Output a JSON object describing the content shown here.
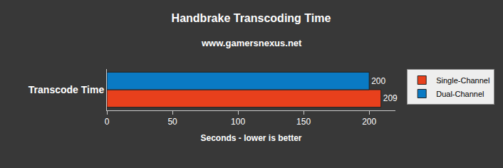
{
  "chart_data": {
    "type": "bar",
    "orientation": "horizontal",
    "title": "Handbrake Transcoding Time",
    "subtitle": "www.gamersnexus.net",
    "x_label": "Seconds - lower is better",
    "categories": [
      "Transcode Time"
    ],
    "series": [
      {
        "name": "Single-Channel",
        "color": "#e8401c",
        "values": [
          209
        ]
      },
      {
        "name": "Dual-Channel",
        "color": "#0a7ac4",
        "values": [
          200
        ]
      }
    ],
    "xlim": [
      0,
      220
    ],
    "xticks": [
      0,
      50,
      100,
      150,
      200
    ],
    "grid": false,
    "legend": "right",
    "data_labels": true
  }
}
